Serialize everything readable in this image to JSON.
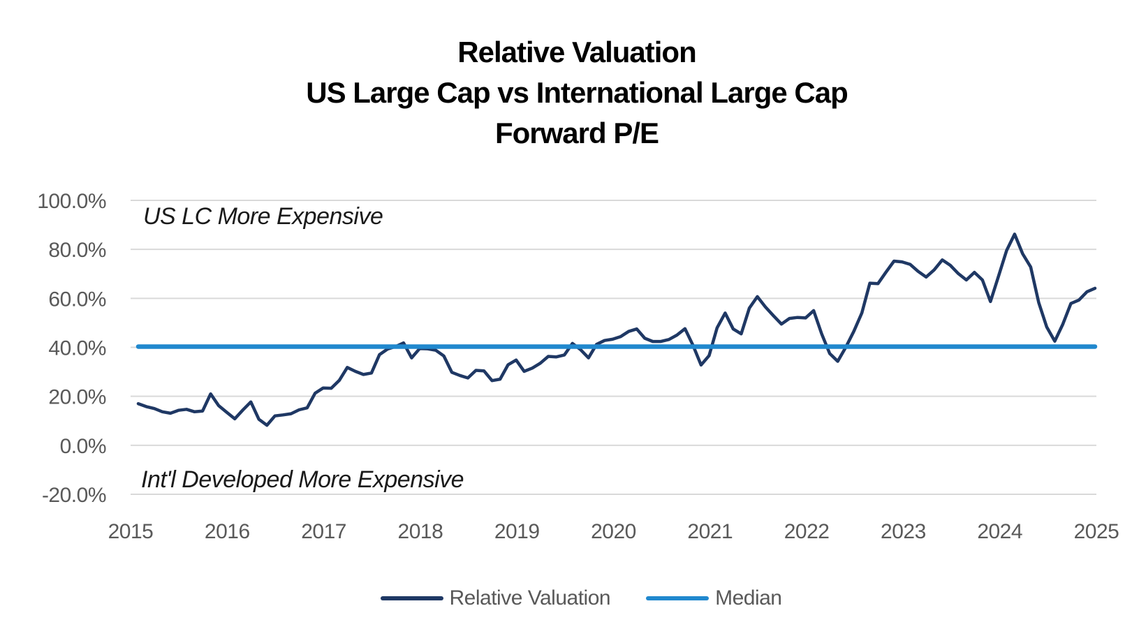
{
  "chart_data": {
    "type": "line",
    "title_lines": [
      "Relative Valuation",
      "US Large Cap vs International Large Cap",
      "Forward P/E"
    ],
    "frequency": "monthly",
    "x_start": "2015-01",
    "x_end": "2024-12",
    "x_tick_labels": [
      "2015",
      "2016",
      "2017",
      "2018",
      "2019",
      "2020",
      "2021",
      "2022",
      "2023",
      "2024",
      "2025"
    ],
    "ylim": [
      -20,
      100
    ],
    "y_ticks": [
      {
        "value": 100,
        "label": "100.0%"
      },
      {
        "value": 80,
        "label": "80.0%"
      },
      {
        "value": 60,
        "label": "60.0%"
      },
      {
        "value": 40,
        "label": "40.0%"
      },
      {
        "value": 20,
        "label": "20.0%"
      },
      {
        "value": 0,
        "label": "0.0%"
      },
      {
        "value": -20,
        "label": "-20.0%"
      }
    ],
    "grid": true,
    "legend_position": "bottom",
    "series": [
      {
        "name": "Relative Valuation",
        "color": "#1f3864",
        "values": [
          17.0,
          15.8,
          15.0,
          13.7,
          13.1,
          14.3,
          14.7,
          13.7,
          14.0,
          21.0,
          16.2,
          13.5,
          10.8,
          14.4,
          17.7,
          10.6,
          8.2,
          12.0,
          12.4,
          12.9,
          14.5,
          15.3,
          21.3,
          23.4,
          23.3,
          26.5,
          31.8,
          30.2,
          28.9,
          29.5,
          37.0,
          39.3,
          40.3,
          41.8,
          35.7,
          39.5,
          39.4,
          38.8,
          36.5,
          29.8,
          28.5,
          27.5,
          30.6,
          30.4,
          26.4,
          27.0,
          32.9,
          34.8,
          30.2,
          31.5,
          33.5,
          36.3,
          36.1,
          36.9,
          41.6,
          39.1,
          35.7,
          41.2,
          42.8,
          43.3,
          44.4,
          46.5,
          47.5,
          43.7,
          42.4,
          42.4,
          43.2,
          45.0,
          47.6,
          40.8,
          32.8,
          36.6,
          48.0,
          54.0,
          47.5,
          45.5,
          56.0,
          60.7,
          56.5,
          52.9,
          49.5,
          51.8,
          52.2,
          52.0,
          55.0,
          45.5,
          37.5,
          34.3,
          40.0,
          46.5,
          54.0,
          66.2,
          66.0,
          70.7,
          75.2,
          74.9,
          73.9,
          71.0,
          68.7,
          71.6,
          75.7,
          73.5,
          70.1,
          67.5,
          70.6,
          67.5,
          58.7,
          69.0,
          79.5,
          86.2,
          78.2,
          72.8,
          58.3,
          48.3,
          42.5,
          49.4,
          57.9,
          59.3,
          62.7,
          64.1
        ]
      },
      {
        "name": "Median",
        "type": "constant",
        "color": "#2088ce",
        "value": 40.3
      }
    ],
    "annotations": [
      {
        "text": "US LC More Expensive",
        "region": "above-median"
      },
      {
        "text": "Int'l Developed More Expensive",
        "region": "below-zero"
      }
    ],
    "legend": [
      {
        "label": "Relative Valuation",
        "color": "#1f3864"
      },
      {
        "label": "Median",
        "color": "#2088ce"
      }
    ],
    "colors": {
      "gridline": "#d9d9d9",
      "axis_text": "#595959",
      "title_text": "#000000"
    }
  }
}
